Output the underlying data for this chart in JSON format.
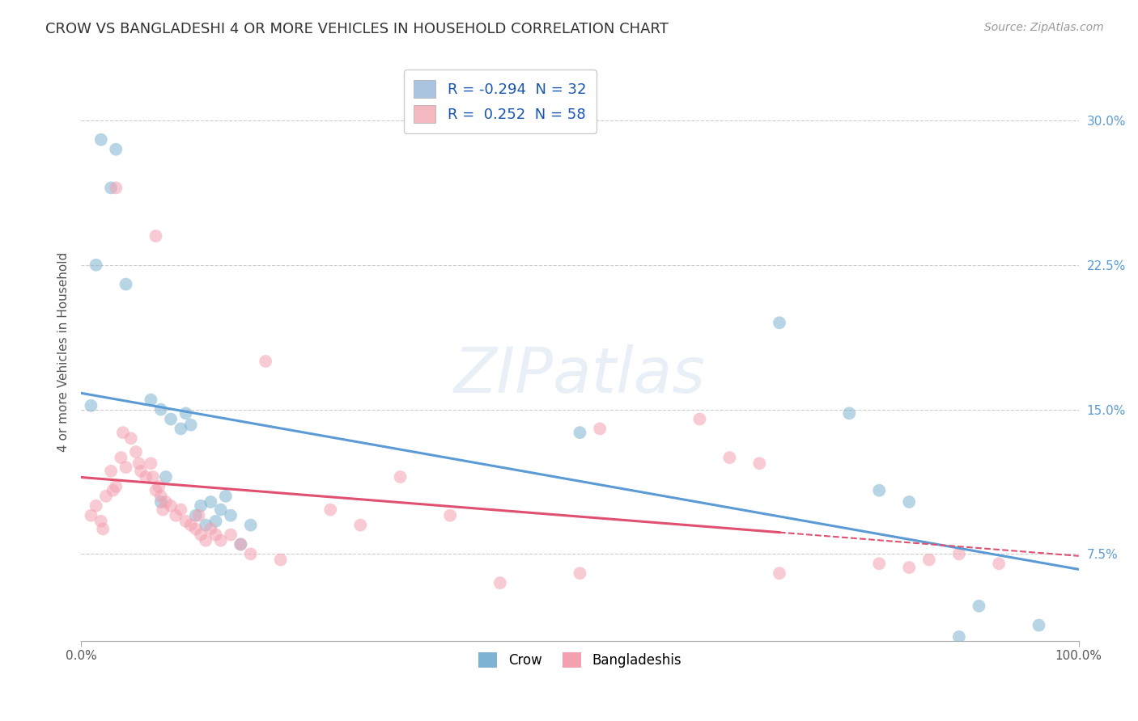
{
  "title": "CROW VS BANGLADESHI 4 OR MORE VEHICLES IN HOUSEHOLD CORRELATION CHART",
  "source": "Source: ZipAtlas.com",
  "ylabel": "4 or more Vehicles in Household",
  "yticks": [
    7.5,
    15.0,
    22.5,
    30.0
  ],
  "ytick_labels": [
    "7.5%",
    "15.0%",
    "22.5%",
    "30.0%"
  ],
  "xlim": [
    0.0,
    100.0
  ],
  "ylim": [
    3.0,
    33.0
  ],
  "legend_entries": [
    {
      "label": "R = -0.294  N = 32",
      "color": "#aac4e0"
    },
    {
      "label": "R =  0.252  N = 58",
      "color": "#f4b8c1"
    }
  ],
  "legend_labels": [
    "Crow",
    "Bangladeshis"
  ],
  "crow_color": "#7fb3d3",
  "bangladeshi_color": "#f4a0b0",
  "crow_scatter": [
    [
      2.0,
      29.0
    ],
    [
      3.5,
      28.5
    ],
    [
      3.0,
      26.5
    ],
    [
      4.5,
      21.5
    ],
    [
      1.5,
      22.5
    ],
    [
      7.0,
      15.5
    ],
    [
      8.0,
      15.0
    ],
    [
      9.0,
      14.5
    ],
    [
      10.0,
      14.0
    ],
    [
      10.5,
      14.8
    ],
    [
      8.5,
      11.5
    ],
    [
      11.0,
      14.2
    ],
    [
      1.0,
      15.2
    ],
    [
      12.0,
      10.0
    ],
    [
      13.0,
      10.2
    ],
    [
      14.0,
      9.8
    ],
    [
      11.5,
      9.5
    ],
    [
      12.5,
      9.0
    ],
    [
      15.0,
      9.5
    ],
    [
      14.5,
      10.5
    ],
    [
      13.5,
      9.2
    ],
    [
      8.0,
      10.2
    ],
    [
      16.0,
      8.0
    ],
    [
      17.0,
      9.0
    ],
    [
      50.0,
      13.8
    ],
    [
      70.0,
      19.5
    ],
    [
      77.0,
      14.8
    ],
    [
      80.0,
      10.8
    ],
    [
      83.0,
      10.2
    ],
    [
      90.0,
      4.8
    ],
    [
      96.0,
      3.8
    ],
    [
      88.0,
      3.2
    ]
  ],
  "bangladeshi_scatter": [
    [
      1.0,
      9.5
    ],
    [
      1.5,
      10.0
    ],
    [
      2.0,
      9.2
    ],
    [
      2.2,
      8.8
    ],
    [
      2.5,
      10.5
    ],
    [
      3.0,
      11.8
    ],
    [
      3.2,
      10.8
    ],
    [
      3.5,
      11.0
    ],
    [
      4.0,
      12.5
    ],
    [
      4.2,
      13.8
    ],
    [
      4.5,
      12.0
    ],
    [
      5.0,
      13.5
    ],
    [
      5.5,
      12.8
    ],
    [
      5.8,
      12.2
    ],
    [
      6.0,
      11.8
    ],
    [
      6.5,
      11.5
    ],
    [
      7.0,
      12.2
    ],
    [
      7.2,
      11.5
    ],
    [
      7.5,
      10.8
    ],
    [
      7.8,
      11.0
    ],
    [
      8.0,
      10.5
    ],
    [
      8.2,
      9.8
    ],
    [
      8.5,
      10.2
    ],
    [
      9.0,
      10.0
    ],
    [
      9.5,
      9.5
    ],
    [
      10.0,
      9.8
    ],
    [
      10.5,
      9.2
    ],
    [
      11.0,
      9.0
    ],
    [
      11.5,
      8.8
    ],
    [
      11.8,
      9.5
    ],
    [
      12.0,
      8.5
    ],
    [
      12.5,
      8.2
    ],
    [
      13.0,
      8.8
    ],
    [
      13.5,
      8.5
    ],
    [
      14.0,
      8.2
    ],
    [
      3.5,
      26.5
    ],
    [
      7.5,
      24.0
    ],
    [
      15.0,
      8.5
    ],
    [
      16.0,
      8.0
    ],
    [
      17.0,
      7.5
    ],
    [
      18.5,
      17.5
    ],
    [
      20.0,
      7.2
    ],
    [
      25.0,
      9.8
    ],
    [
      28.0,
      9.0
    ],
    [
      32.0,
      11.5
    ],
    [
      37.0,
      9.5
    ],
    [
      42.0,
      6.0
    ],
    [
      50.0,
      6.5
    ],
    [
      52.0,
      14.0
    ],
    [
      62.0,
      14.5
    ],
    [
      65.0,
      12.5
    ],
    [
      68.0,
      12.2
    ],
    [
      70.0,
      6.5
    ],
    [
      80.0,
      7.0
    ],
    [
      83.0,
      6.8
    ],
    [
      85.0,
      7.2
    ],
    [
      88.0,
      7.5
    ],
    [
      92.0,
      7.0
    ]
  ],
  "watermark_text": "ZIPatlas",
  "background_color": "#ffffff",
  "grid_color": "#cccccc",
  "title_fontsize": 13,
  "source_fontsize": 10,
  "axis_label_fontsize": 11,
  "tick_fontsize": 11,
  "scatter_size": 130,
  "scatter_alpha": 0.55
}
